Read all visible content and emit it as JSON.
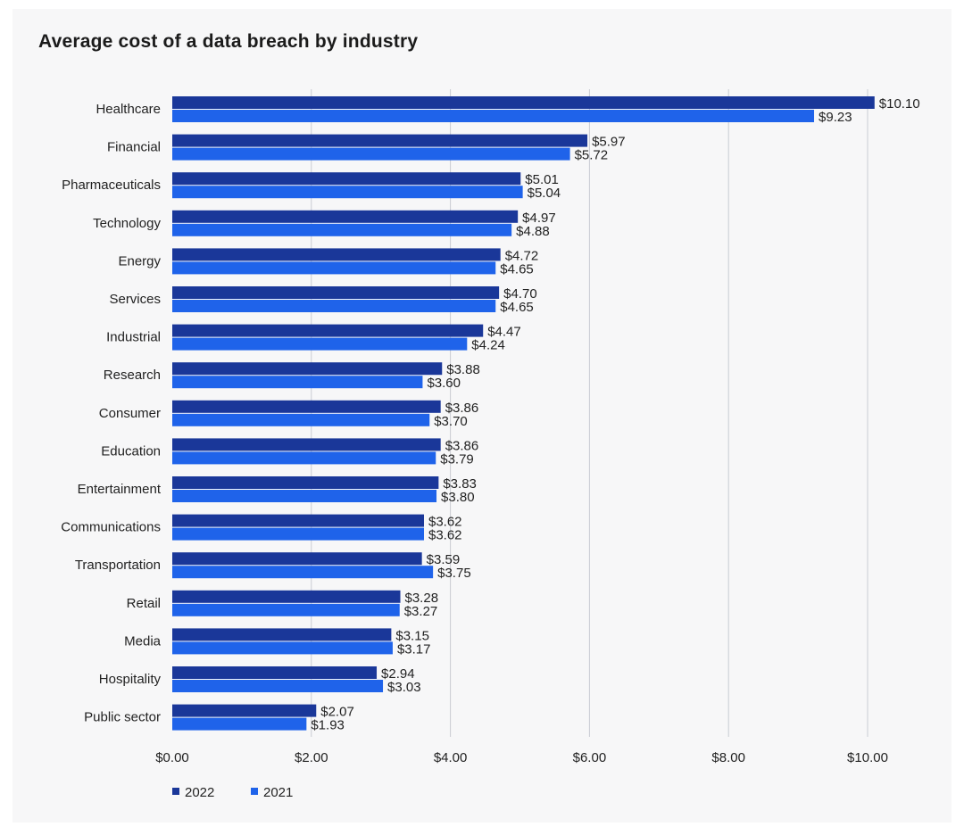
{
  "title": "Average cost of a data breach by industry",
  "colors": {
    "s2022": "#1a3799",
    "s2021": "#1f63ea",
    "grid": "#c9ccd3"
  },
  "chart_data": {
    "type": "bar",
    "orientation": "horizontal",
    "title": "Average cost of a data breach by industry",
    "xlabel": "",
    "ylabel": "",
    "xlim": [
      0,
      10
    ],
    "grid": true,
    "legend_position": "bottom-left",
    "x_ticks": [
      "$0.00",
      "$2.00",
      "$4.00",
      "$6.00",
      "$8.00",
      "$10.00"
    ],
    "categories": [
      "Healthcare",
      "Financial",
      "Pharmaceuticals",
      "Technology",
      "Energy",
      "Services",
      "Industrial",
      "Research",
      "Consumer",
      "Education",
      "Entertainment",
      "Communications",
      "Transportation",
      "Retail",
      "Media",
      "Hospitality",
      "Public sector"
    ],
    "series": [
      {
        "name": "2022",
        "values": [
          10.1,
          5.97,
          5.01,
          4.97,
          4.72,
          4.7,
          4.47,
          3.88,
          3.86,
          3.86,
          3.83,
          3.62,
          3.59,
          3.28,
          3.15,
          2.94,
          2.07
        ],
        "labels": [
          "$10.10",
          "$5.97",
          "$5.01",
          "$4.97",
          "$4.72",
          "$4.70",
          "$4.47",
          "$3.88",
          "$3.86",
          "$3.86",
          "$3.83",
          "$3.62",
          "$3.59",
          "$3.28",
          "$3.15",
          "$2.94",
          "$2.07"
        ]
      },
      {
        "name": "2021",
        "values": [
          9.23,
          5.72,
          5.04,
          4.88,
          4.65,
          4.65,
          4.24,
          3.6,
          3.7,
          3.79,
          3.8,
          3.62,
          3.75,
          3.27,
          3.17,
          3.03,
          1.93
        ],
        "labels": [
          "$9.23",
          "$5.72",
          "$5.04",
          "$4.88",
          "$4.65",
          "$4.65",
          "$4.24",
          "$3.60",
          "$3.70",
          "$3.79",
          "$3.80",
          "$3.62",
          "$3.75",
          "$3.27",
          "$3.17",
          "$3.03",
          "$1.93"
        ]
      }
    ]
  }
}
